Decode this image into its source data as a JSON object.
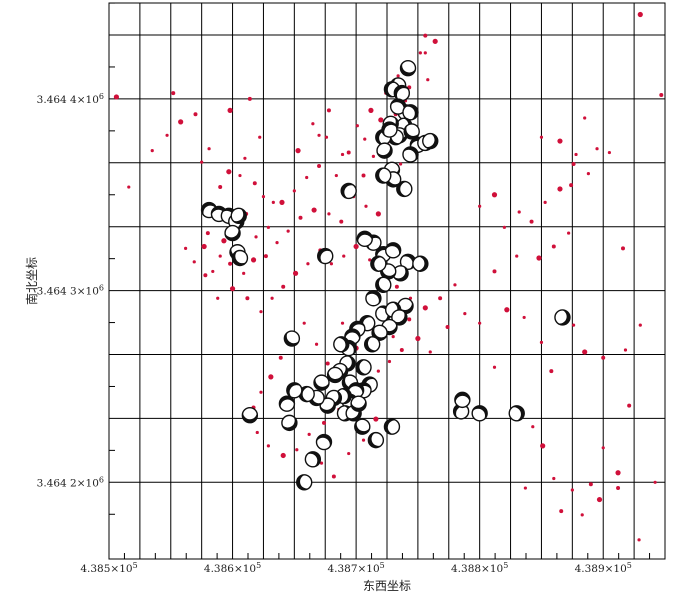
{
  "chart_data": {
    "type": "scatter",
    "title": "",
    "xlabel": "东西坐标",
    "ylabel": "南北坐标",
    "x_tick_labels": [
      {
        "value": 438500,
        "mantissa": "4.385×10",
        "exp": "5"
      },
      {
        "value": 438600,
        "mantissa": "4.386×10",
        "exp": "5"
      },
      {
        "value": 438700,
        "mantissa": "4.387×10",
        "exp": "5"
      },
      {
        "value": 438800,
        "mantissa": "4.388×10",
        "exp": "5"
      },
      {
        "value": 438900,
        "mantissa": "4.389×10",
        "exp": "5"
      }
    ],
    "y_tick_labels": [
      {
        "value": 3464400,
        "mantissa": "3.464 4×10",
        "exp": "6"
      },
      {
        "value": 3464300,
        "mantissa": "3.464 3×10",
        "exp": "6"
      },
      {
        "value": 3464200,
        "mantissa": "3.464 2×10",
        "exp": "6"
      }
    ],
    "xlim": [
      438500,
      438950
    ],
    "ylim": [
      3464160,
      3464450
    ],
    "grid": true,
    "grid_step_x": 25,
    "grid_step_y": 33.33,
    "colors": {
      "events": "#d0103a",
      "beachball": "#111111"
    },
    "series": [
      {
        "marker": "dot",
        "points": [
          [
            438506,
            3464401
          ],
          [
            438516,
            3464354
          ],
          [
            438535,
            3464373
          ],
          [
            438552,
            3464403
          ],
          [
            438547,
            3464381
          ],
          [
            438558,
            3464388
          ],
          [
            438570,
            3464392
          ],
          [
            438575,
            3464367
          ],
          [
            438581,
            3464374
          ],
          [
            438590,
            3464354
          ],
          [
            438597,
            3464362
          ],
          [
            438610,
            3464369
          ],
          [
            438618,
            3464356
          ],
          [
            438625,
            3464349
          ],
          [
            438633,
            3464346
          ],
          [
            438653,
            3464373
          ],
          [
            438665,
            3464387
          ],
          [
            438676,
            3464380
          ],
          [
            438694,
            3464372
          ],
          [
            438707,
            3464379
          ],
          [
            438720,
            3464389
          ],
          [
            438732,
            3464392
          ],
          [
            438740,
            3464399
          ],
          [
            438752,
            3464424
          ],
          [
            438756,
            3464433
          ],
          [
            438764,
            3464430
          ],
          [
            438758,
            3464410
          ],
          [
            438748,
            3464380
          ],
          [
            438736,
            3464366
          ],
          [
            438725,
            3464357
          ],
          [
            438718,
            3464340
          ],
          [
            438708,
            3464344
          ],
          [
            438698,
            3464349
          ],
          [
            438688,
            3464336
          ],
          [
            438678,
            3464340
          ],
          [
            438666,
            3464342
          ],
          [
            438655,
            3464338
          ],
          [
            438645,
            3464331
          ],
          [
            438636,
            3464325
          ],
          [
            438627,
            3464318
          ],
          [
            438617,
            3464316
          ],
          [
            438609,
            3464309
          ],
          [
            438598,
            3464314
          ],
          [
            438590,
            3464318
          ],
          [
            438584,
            3464310
          ],
          [
            438577,
            3464323
          ],
          [
            438569,
            3464315
          ],
          [
            438562,
            3464322
          ],
          [
            438578,
            3464308
          ],
          [
            438588,
            3464296
          ],
          [
            438600,
            3464301
          ],
          [
            438612,
            3464296
          ],
          [
            438623,
            3464289
          ],
          [
            438632,
            3464296
          ],
          [
            438641,
            3464302
          ],
          [
            438651,
            3464309
          ],
          [
            438661,
            3464314
          ],
          [
            438671,
            3464321
          ],
          [
            438680,
            3464314
          ],
          [
            438690,
            3464318
          ],
          [
            438700,
            3464323
          ],
          [
            438711,
            3464316
          ],
          [
            438722,
            3464309
          ],
          [
            438733,
            3464302
          ],
          [
            438744,
            3464296
          ],
          [
            438756,
            3464291
          ],
          [
            438768,
            3464296
          ],
          [
            438780,
            3464303
          ],
          [
            438646,
            3464277
          ],
          [
            438639,
            3464265
          ],
          [
            438631,
            3464255
          ],
          [
            438623,
            3464247
          ],
          [
            438617,
            3464239
          ],
          [
            438620,
            3464226
          ],
          [
            438629,
            3464219
          ],
          [
            438641,
            3464214
          ],
          [
            438652,
            3464217
          ],
          [
            438662,
            3464225
          ],
          [
            438674,
            3464231
          ],
          [
            438686,
            3464238
          ],
          [
            438697,
            3464245
          ],
          [
            438707,
            3464250
          ],
          [
            438718,
            3464258
          ],
          [
            438727,
            3464263
          ],
          [
            438737,
            3464269
          ],
          [
            438658,
            3464200
          ],
          [
            438672,
            3464210
          ],
          [
            438682,
            3464203
          ],
          [
            438694,
            3464215
          ],
          [
            438706,
            3464222
          ],
          [
            438716,
            3464233
          ],
          [
            438658,
            3464283
          ],
          [
            438668,
            3464272
          ],
          [
            438677,
            3464262
          ],
          [
            438689,
            3464283
          ],
          [
            438700,
            3464270
          ],
          [
            438711,
            3464280
          ],
          [
            438721,
            3464288
          ],
          [
            438730,
            3464276
          ],
          [
            438743,
            3464285
          ],
          [
            438750,
            3464275
          ],
          [
            438760,
            3464268
          ],
          [
            438774,
            3464281
          ],
          [
            438788,
            3464288
          ],
          [
            438800,
            3464344
          ],
          [
            438812,
            3464350
          ],
          [
            438820,
            3464333
          ],
          [
            438832,
            3464341
          ],
          [
            438842,
            3464336
          ],
          [
            438853,
            3464346
          ],
          [
            438865,
            3464353
          ],
          [
            438876,
            3464366
          ],
          [
            438888,
            3464361
          ],
          [
            438872,
            3464330
          ],
          [
            438860,
            3464323
          ],
          [
            438848,
            3464317
          ],
          [
            438830,
            3464318
          ],
          [
            438812,
            3464310
          ],
          [
            438800,
            3464283
          ],
          [
            438812,
            3464260
          ],
          [
            438822,
            3464290
          ],
          [
            438836,
            3464286
          ],
          [
            438850,
            3464273
          ],
          [
            438858,
            3464258
          ],
          [
            438876,
            3464282
          ],
          [
            438885,
            3464268
          ],
          [
            438900,
            3464265
          ],
          [
            438918,
            3464269
          ],
          [
            438930,
            3464282
          ],
          [
            438921,
            3464240
          ],
          [
            438912,
            3464205
          ],
          [
            438900,
            3464218
          ],
          [
            438890,
            3464199
          ],
          [
            438875,
            3464196
          ],
          [
            438860,
            3464202
          ],
          [
            438851,
            3464219
          ],
          [
            438843,
            3464229
          ],
          [
            438837,
            3464197
          ],
          [
            438866,
            3464185
          ],
          [
            438883,
            3464183
          ],
          [
            438897,
            3464191
          ],
          [
            438912,
            3464197
          ],
          [
            438942,
            3464200
          ],
          [
            438929,
            3464170
          ],
          [
            438947,
            3464402
          ],
          [
            438930,
            3464444
          ],
          [
            438850,
            3464380
          ],
          [
            438874,
            3464355
          ],
          [
            438878,
            3464371
          ],
          [
            438885,
            3464390
          ],
          [
            438865,
            3464378
          ],
          [
            438895,
            3464374
          ],
          [
            438905,
            3464372
          ],
          [
            438916,
            3464322
          ],
          [
            438606,
            3464360
          ],
          [
            438598,
            3464394
          ],
          [
            438614,
            3464400
          ],
          [
            438622,
            3464380
          ],
          [
            438587,
            3464340
          ],
          [
            438580,
            3464330
          ],
          [
            438593,
            3464326
          ],
          [
            438604,
            3464329
          ],
          [
            438611,
            3464340
          ],
          [
            438619,
            3464328
          ],
          [
            438629,
            3464333
          ],
          [
            438640,
            3464346
          ],
          [
            438650,
            3464352
          ],
          [
            438660,
            3464359
          ],
          [
            438670,
            3464365
          ],
          [
            438684,
            3464360
          ],
          [
            438696,
            3464354
          ],
          [
            438706,
            3464360
          ],
          [
            438714,
            3464370
          ],
          [
            438726,
            3464376
          ],
          [
            438739,
            3464385
          ],
          [
            438745,
            3464415
          ],
          [
            438756,
            3464424
          ],
          [
            438743,
            3464406
          ],
          [
            438734,
            3464412
          ],
          [
            438724,
            3464403
          ],
          [
            438712,
            3464394
          ],
          [
            438701,
            3464386
          ],
          [
            438689,
            3464371
          ],
          [
            438678,
            3464394
          ],
          [
            438670,
            3464381
          ]
        ]
      },
      {
        "marker": "beachball",
        "points": [
          [
            438742,
            3464416
          ],
          [
            438734,
            3464407
          ],
          [
            438729,
            3464405
          ],
          [
            438737,
            3464403
          ],
          [
            438740,
            3464393
          ],
          [
            438734,
            3464396
          ],
          [
            438744,
            3464393
          ],
          [
            438739,
            3464386
          ],
          [
            438728,
            3464387
          ],
          [
            438735,
            3464381
          ],
          [
            438745,
            3464383
          ],
          [
            438732,
            3464380
          ],
          [
            438722,
            3464380
          ],
          [
            438727,
            3464384
          ],
          [
            438750,
            3464376
          ],
          [
            438744,
            3464371
          ],
          [
            438756,
            3464377
          ],
          [
            438760,
            3464378
          ],
          [
            438723,
            3464373
          ],
          [
            438729,
            3464363
          ],
          [
            438730,
            3464358
          ],
          [
            438722,
            3464360
          ],
          [
            438694,
            3464352
          ],
          [
            438581,
            3464342
          ],
          [
            438589,
            3464340
          ],
          [
            438597,
            3464339
          ],
          [
            438603,
            3464336
          ],
          [
            438605,
            3464339
          ],
          [
            438600,
            3464330
          ],
          [
            438604,
            3464320
          ],
          [
            438606,
            3464317
          ],
          [
            438739,
            3464353
          ],
          [
            438675,
            3464318
          ],
          [
            438722,
            3464319
          ],
          [
            438730,
            3464321
          ],
          [
            438742,
            3464315
          ],
          [
            438752,
            3464314
          ],
          [
            438736,
            3464309
          ],
          [
            438740,
            3464292
          ],
          [
            438726,
            3464310
          ],
          [
            438722,
            3464303
          ],
          [
            438718,
            3464314
          ],
          [
            438714,
            3464325
          ],
          [
            438707,
            3464327
          ],
          [
            438714,
            3464296
          ],
          [
            438722,
            3464288
          ],
          [
            438730,
            3464290
          ],
          [
            438735,
            3464286
          ],
          [
            438727,
            3464281
          ],
          [
            438719,
            3464278
          ],
          [
            438713,
            3464272
          ],
          [
            438709,
            3464283
          ],
          [
            438701,
            3464280
          ],
          [
            438697,
            3464276
          ],
          [
            438694,
            3464270
          ],
          [
            438688,
            3464272
          ],
          [
            438693,
            3464262
          ],
          [
            438687,
            3464258
          ],
          [
            438683,
            3464256
          ],
          [
            438695,
            3464252
          ],
          [
            438706,
            3464260
          ],
          [
            438711,
            3464251
          ],
          [
            438706,
            3464248
          ],
          [
            438700,
            3464248
          ],
          [
            438695,
            3464242
          ],
          [
            438690,
            3464245
          ],
          [
            438682,
            3464244
          ],
          [
            438677,
            3464240
          ],
          [
            438672,
            3464252
          ],
          [
            438668,
            3464244
          ],
          [
            438660,
            3464246
          ],
          [
            438650,
            3464248
          ],
          [
            438644,
            3464241
          ],
          [
            438674,
            3464221
          ],
          [
            438665,
            3464212
          ],
          [
            438691,
            3464236
          ],
          [
            438698,
            3464236
          ],
          [
            438702,
            3464241
          ],
          [
            438705,
            3464229
          ],
          [
            438716,
            3464222
          ],
          [
            438729,
            3464229
          ],
          [
            438785,
            3464237
          ],
          [
            438786,
            3464243
          ],
          [
            438800,
            3464236
          ],
          [
            438830,
            3464236
          ],
          [
            438867,
            3464286
          ],
          [
            438646,
            3464231
          ],
          [
            438614,
            3464235
          ],
          [
            438648,
            3464275
          ],
          [
            438658,
            3464200
          ]
        ]
      }
    ]
  }
}
